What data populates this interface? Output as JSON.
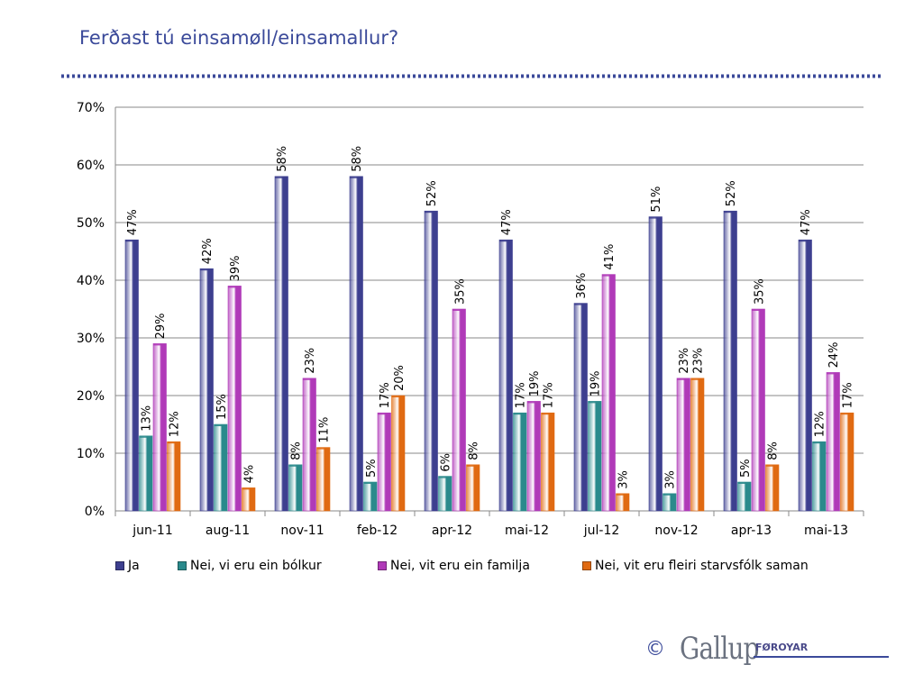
{
  "header": {
    "title": "Ferðast tú einsamøll/einsamallur?"
  },
  "colors": {
    "title": "#3b4a9a",
    "ja": "#3d3f8f",
    "bolkur": "#2a8a8c",
    "familja": "#b03ab8",
    "starvsfolk": "#e06a12"
  },
  "chart_data": {
    "type": "bar",
    "title": "Ferðast tú einsamøll/einsamallur?",
    "xlabel": "",
    "ylabel": "",
    "ylim": [
      0,
      70
    ],
    "yticks": [
      "0%",
      "10%",
      "20%",
      "30%",
      "40%",
      "50%",
      "60%",
      "70%"
    ],
    "grid": true,
    "legend_position": "bottom",
    "categories": [
      "jun-11",
      "aug-11",
      "nov-11",
      "feb-12",
      "apr-12",
      "mai-12",
      "jul-12",
      "nov-12",
      "apr-13",
      "mai-13"
    ],
    "series": [
      {
        "name": "Ja",
        "color": "#3d3f8f",
        "values": [
          47,
          42,
          58,
          58,
          52,
          47,
          36,
          51,
          52,
          47
        ]
      },
      {
        "name": "Nei, vi eru ein bólkur",
        "color": "#2a8a8c",
        "values": [
          13,
          15,
          8,
          5,
          6,
          17,
          19,
          3,
          5,
          12
        ]
      },
      {
        "name": "Nei, vit eru ein familja",
        "color": "#b03ab8",
        "values": [
          29,
          39,
          23,
          17,
          35,
          19,
          41,
          23,
          35,
          24
        ]
      },
      {
        "name": "Nei, vit eru fleiri starvsfólk saman",
        "color": "#e06a12",
        "values": [
          12,
          4,
          11,
          20,
          8,
          17,
          3,
          23,
          8,
          17
        ]
      }
    ]
  },
  "footer": {
    "copyright": "©",
    "brand": "Gallup",
    "brand_sub": "FØROYAR"
  }
}
